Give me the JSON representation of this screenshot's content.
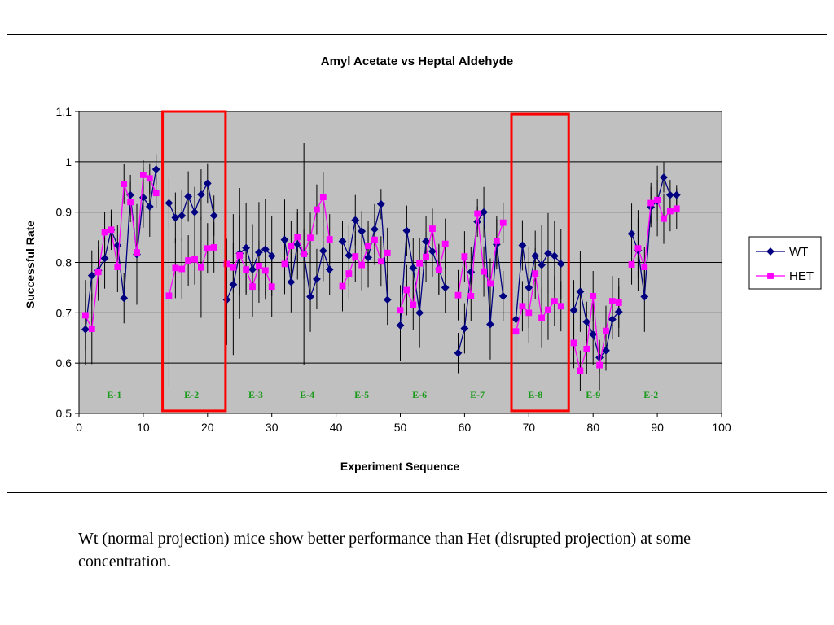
{
  "chart_data": {
    "type": "line",
    "title": "Amyl Acetate vs Heptal Aldehyde",
    "xlabel": "Experiment Sequence",
    "ylabel": "Successful Rate",
    "xlim": [
      0,
      100
    ],
    "ylim": [
      0.5,
      1.1
    ],
    "xticks": [
      0,
      10,
      20,
      30,
      40,
      50,
      60,
      70,
      80,
      90,
      100
    ],
    "yticks": [
      0.5,
      0.6,
      0.7,
      0.8,
      0.9,
      1,
      1.1
    ],
    "ytick_labels": [
      "0.5",
      "0.6",
      "0.7",
      "0.8",
      "0.9",
      "1",
      "1.1"
    ],
    "grid": "horizontal",
    "legend": "right",
    "plot_background": "#c0c0c0",
    "series": [
      {
        "name": "WT",
        "color": "#000080",
        "marker": "diamond",
        "segments": [
          {
            "x": [
              1,
              2,
              3,
              4,
              5,
              6,
              7,
              8,
              9,
              10,
              11,
              12
            ],
            "y": [
              0.667,
              0.774,
              0.784,
              0.808,
              0.864,
              0.834,
              0.729,
              0.934,
              0.816,
              0.929,
              0.911,
              0.985
            ],
            "err": [
              0.07,
              0.05,
              0.06,
              0.06,
              0.03,
              0.04,
              0.05,
              0.04,
              0.1,
              0.06,
              0.06,
              0.03
            ]
          },
          {
            "x": [
              14,
              15,
              16,
              17,
              18,
              19,
              20,
              21
            ],
            "y": [
              0.918,
              0.889,
              0.893,
              0.931,
              0.9,
              0.935,
              0.957,
              0.893
            ],
            "err": [
              0.05,
              0.05,
              0.05,
              0.05,
              0.05,
              0.05,
              0.04,
              0.04
            ]
          },
          {
            "x": [
              23,
              24,
              25,
              26,
              27,
              28,
              29,
              30
            ],
            "y": [
              0.726,
              0.756,
              0.818,
              0.829,
              0.786,
              0.82,
              0.826,
              0.813
            ],
            "err": [
              0.09,
              0.14,
              0.13,
              0.09,
              0.09,
              0.1,
              0.1,
              0.08
            ]
          },
          {
            "x": [
              32,
              33,
              34,
              35,
              36,
              37,
              38,
              39
            ],
            "y": [
              0.845,
              0.761,
              0.836,
              0.817,
              0.732,
              0.767,
              0.823,
              0.786
            ],
            "err": [
              0.08,
              0.06,
              0.07,
              0.22,
              0.07,
              0.06,
              0.06,
              0.05
            ]
          },
          {
            "x": [
              41,
              42,
              43,
              44,
              45,
              46,
              47,
              48
            ],
            "y": [
              0.842,
              0.814,
              0.884,
              0.862,
              0.81,
              0.866,
              0.916,
              0.726
            ],
            "err": [
              0.04,
              0.06,
              0.05,
              0.04,
              0.06,
              0.05,
              0.03,
              0.05
            ]
          },
          {
            "x": [
              50,
              51,
              52,
              53,
              54,
              55,
              56,
              57
            ],
            "y": [
              0.675,
              0.863,
              0.789,
              0.7,
              0.842,
              0.822,
              0.787,
              0.75
            ],
            "err": [
              0.07,
              0.05,
              0.06,
              0.07,
              0.05,
              0.05,
              0.05,
              0.05
            ]
          },
          {
            "x": [
              59,
              60,
              61,
              62,
              63,
              64,
              65,
              66
            ],
            "y": [
              0.62,
              0.669,
              0.781,
              0.881,
              0.9,
              0.677,
              0.836,
              0.733
            ],
            "err": [
              0.04,
              0.05,
              0.05,
              0.03,
              0.05,
              0.07,
              0.05,
              0.05
            ]
          },
          {
            "x": [
              68,
              69,
              70,
              71,
              72,
              73,
              74,
              75
            ],
            "y": [
              0.687,
              0.834,
              0.75,
              0.813,
              0.795,
              0.818,
              0.813,
              0.797
            ],
            "err": [
              0.07,
              0.05,
              0.08,
              0.05,
              0.08,
              0.08,
              0.07,
              0.07
            ]
          },
          {
            "x": [
              77,
              78,
              79,
              80,
              81,
              82,
              83,
              84
            ],
            "y": [
              0.705,
              0.742,
              0.682,
              0.657,
              0.611,
              0.625,
              0.687,
              0.702
            ],
            "err": [
              0.06,
              0.08,
              0.04,
              0.06,
              0.03,
              0.04,
              0.04,
              0.05
            ]
          },
          {
            "x": [
              86,
              87,
              88,
              89,
              90,
              91,
              92,
              93
            ],
            "y": [
              0.857,
              0.824,
              0.732,
              0.91,
              0.922,
              0.969,
              0.934,
              0.934
            ],
            "err": [
              0.06,
              0.08,
              0.07,
              0.04,
              0.07,
              0.03,
              0.03,
              0.02
            ]
          }
        ]
      },
      {
        "name": "HET",
        "color": "#ff00ff",
        "marker": "square",
        "segments": [
          {
            "x": [
              1,
              2,
              3,
              4,
              5,
              6,
              7,
              8,
              9,
              10,
              11,
              12
            ],
            "y": [
              0.695,
              0.668,
              0.781,
              0.86,
              0.865,
              0.791,
              0.956,
              0.92,
              0.82,
              0.974,
              0.967,
              0.938
            ],
            "err": [
              0.07,
              0.07,
              0.05,
              0.04,
              0.04,
              0.05,
              0.04,
              0.04,
              0.05,
              0.03,
              0.03,
              0.03
            ]
          },
          {
            "x": [
              14,
              15,
              16,
              17,
              18,
              19,
              20,
              21
            ],
            "y": [
              0.734,
              0.789,
              0.787,
              0.804,
              0.806,
              0.79,
              0.828,
              0.83
            ],
            "err": [
              0.18,
              0.06,
              0.06,
              0.05,
              0.05,
              0.1,
              0.05,
              0.05
            ]
          },
          {
            "x": [
              23,
              24,
              25,
              26,
              27,
              28,
              29,
              30
            ],
            "y": [
              0.797,
              0.79,
              0.814,
              0.786,
              0.752,
              0.793,
              0.784,
              0.752
            ],
            "err": [
              0.05,
              0.05,
              0.08,
              0.05,
              0.06,
              0.05,
              0.05,
              0.06
            ]
          },
          {
            "x": [
              32,
              33,
              34,
              35,
              36,
              37,
              38,
              39
            ],
            "y": [
              0.797,
              0.833,
              0.851,
              0.817,
              0.849,
              0.905,
              0.93,
              0.846
            ],
            "err": [
              0.06,
              0.05,
              0.05,
              0.05,
              0.05,
              0.05,
              0.05,
              0.05
            ]
          },
          {
            "x": [
              41,
              42,
              43,
              44,
              45,
              46,
              47,
              48
            ],
            "y": [
              0.753,
              0.778,
              0.812,
              0.795,
              0.833,
              0.845,
              0.802,
              0.819
            ],
            "err": [
              0.05,
              0.05,
              0.05,
              0.05,
              0.05,
              0.05,
              0.05,
              0.05
            ]
          },
          {
            "x": [
              50,
              51,
              52,
              53,
              54,
              55,
              56,
              57
            ],
            "y": [
              0.705,
              0.745,
              0.716,
              0.798,
              0.811,
              0.867,
              0.785,
              0.837
            ],
            "err": [
              0.05,
              0.05,
              0.05,
              0.05,
              0.05,
              0.04,
              0.05,
              0.05
            ]
          },
          {
            "x": [
              59,
              60,
              61,
              62,
              63,
              64,
              65,
              66
            ],
            "y": [
              0.735,
              0.812,
              0.733,
              0.897,
              0.782,
              0.758,
              0.843,
              0.879
            ],
            "err": [
              0.05,
              0.05,
              0.05,
              0.03,
              0.05,
              0.05,
              0.05,
              0.04
            ]
          },
          {
            "x": [
              68,
              69,
              70,
              71,
              72,
              73,
              74,
              75
            ],
            "y": [
              0.663,
              0.713,
              0.7,
              0.778,
              0.69,
              0.706,
              0.723,
              0.713
            ],
            "err": [
              0.06,
              0.05,
              0.06,
              0.05,
              0.06,
              0.06,
              0.05,
              0.05
            ]
          },
          {
            "x": [
              77,
              78,
              79,
              80,
              81,
              82,
              83,
              84
            ],
            "y": [
              0.64,
              0.585,
              0.628,
              0.733,
              0.596,
              0.664,
              0.723,
              0.72
            ],
            "err": [
              0.05,
              0.04,
              0.05,
              0.05,
              0.05,
              0.05,
              0.05,
              0.05
            ]
          },
          {
            "x": [
              86,
              87,
              88,
              89,
              90,
              91,
              92,
              93
            ],
            "y": [
              0.796,
              0.828,
              0.791,
              0.918,
              0.924,
              0.887,
              0.902,
              0.907
            ],
            "err": [
              0.04,
              0.06,
              0.04,
              0.04,
              0.04,
              0.05,
              0.04,
              0.04
            ]
          }
        ]
      }
    ],
    "segment_labels": [
      {
        "text": "E-1",
        "x": 5.5
      },
      {
        "text": "E-2",
        "x": 17.5
      },
      {
        "text": "E-3",
        "x": 27.5
      },
      {
        "text": "E-4",
        "x": 35.5
      },
      {
        "text": "E-5",
        "x": 44
      },
      {
        "text": "E-6",
        "x": 53
      },
      {
        "text": "E-7",
        "x": 62
      },
      {
        "text": "E-8",
        "x": 71
      },
      {
        "text": "E-9",
        "x": 80
      },
      {
        "text": "E-2",
        "x": 89
      }
    ],
    "segment_label_y": 0.537,
    "highlights": [
      {
        "x0": 13,
        "x1": 22.8,
        "y0": 0.505,
        "y1": 1.1,
        "color": "#ff0000"
      },
      {
        "x0": 67.3,
        "x1": 76.2,
        "y0": 0.505,
        "y1": 1.095,
        "color": "#ff0000"
      }
    ]
  },
  "caption": "Wt (normal projection) mice show better performance than Het (disrupted projection) at some concentration."
}
